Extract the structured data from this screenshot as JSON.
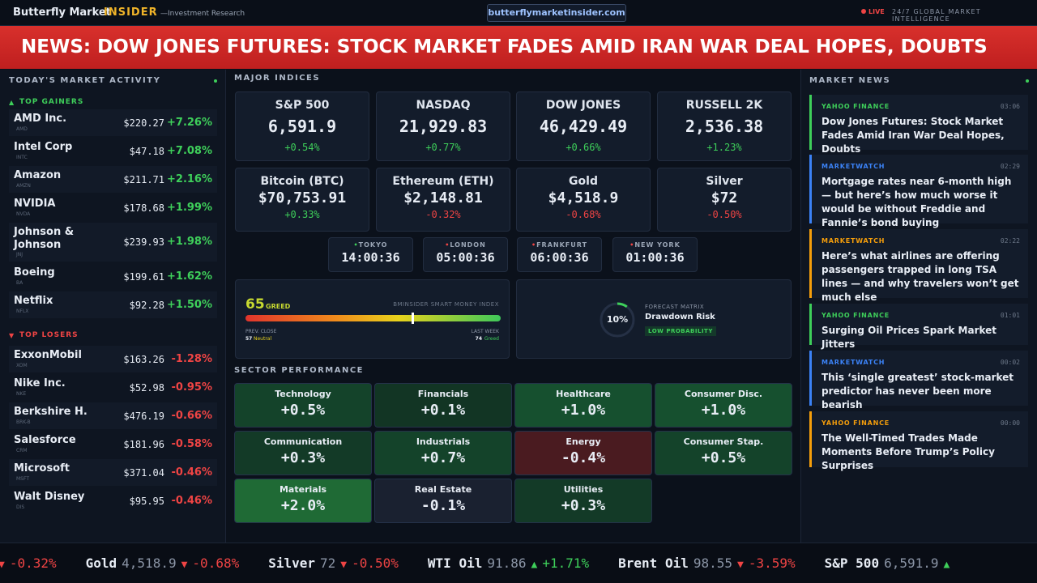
{
  "header": {
    "brand": "Butterfly Market",
    "brand_accent": "INSIDER",
    "tagline": "—Investment Research",
    "url": "butterflymarketinsider.com",
    "live": "LIVE",
    "live_tagline": "24/7 GLOBAL MARKET INTELLIGENCE"
  },
  "banner": "NEWS: DOW JONES FUTURES: STOCK MARKET FADES AMID IRAN WAR DEAL HOPES, DOUBTS",
  "market_activity": {
    "title": "TODAY'S MARKET ACTIVITY",
    "gainers_title": "TOP GAINERS",
    "losers_title": "TOP LOSERS",
    "gainers": [
      {
        "name": "AMD Inc.",
        "ticker": "AMD",
        "price": "$220.27",
        "change": "+7.26%"
      },
      {
        "name": "Intel Corp",
        "ticker": "INTC",
        "price": "$47.18",
        "change": "+7.08%"
      },
      {
        "name": "Amazon",
        "ticker": "AMZN",
        "price": "$211.71",
        "change": "+2.16%"
      },
      {
        "name": "NVIDIA",
        "ticker": "NVDA",
        "price": "$178.68",
        "change": "+1.99%"
      },
      {
        "name": "Johnson & Johnson",
        "ticker": "JNJ",
        "price": "$239.93",
        "change": "+1.98%"
      },
      {
        "name": "Boeing",
        "ticker": "BA",
        "price": "$199.61",
        "change": "+1.62%"
      },
      {
        "name": "Netflix",
        "ticker": "NFLX",
        "price": "$92.28",
        "change": "+1.50%"
      }
    ],
    "losers": [
      {
        "name": "ExxonMobil",
        "ticker": "XOM",
        "price": "$163.26",
        "change": "-1.28%"
      },
      {
        "name": "Nike Inc.",
        "ticker": "NKE",
        "price": "$52.98",
        "change": "-0.95%"
      },
      {
        "name": "Berkshire H.",
        "ticker": "BRK-B",
        "price": "$476.19",
        "change": "-0.66%"
      },
      {
        "name": "Salesforce",
        "ticker": "CRM",
        "price": "$181.96",
        "change": "-0.58%"
      },
      {
        "name": "Microsoft",
        "ticker": "MSFT",
        "price": "$371.04",
        "change": "-0.46%"
      },
      {
        "name": "Walt Disney",
        "ticker": "DIS",
        "price": "$95.95",
        "change": "-0.46%"
      }
    ]
  },
  "indices": {
    "title": "MAJOR INDICES",
    "items": [
      {
        "name": "S&P 500",
        "value": "6,591.9",
        "change": "+0.54%"
      },
      {
        "name": "NASDAQ",
        "value": "21,929.83",
        "change": "+0.77%"
      },
      {
        "name": "DOW JONES",
        "value": "46,429.49",
        "change": "+0.66%"
      },
      {
        "name": "RUSSELL 2K",
        "value": "2,536.38",
        "change": "+1.23%"
      },
      {
        "name": "Bitcoin (BTC)",
        "value": "$70,753.91",
        "change": "+0.33%"
      },
      {
        "name": "Ethereum (ETH)",
        "value": "$2,148.81",
        "change": "-0.32%"
      },
      {
        "name": "Gold",
        "value": "$4,518.9",
        "change": "-0.68%"
      },
      {
        "name": "Silver",
        "value": "$72",
        "change": "-0.50%"
      }
    ]
  },
  "clocks": [
    {
      "city": "TOKYO",
      "time": "14:00:36"
    },
    {
      "city": "LONDON",
      "time": "05:00:36"
    },
    {
      "city": "FRANKFURT",
      "time": "06:00:36"
    },
    {
      "city": "NEW YORK",
      "time": "01:00:36"
    }
  ],
  "sentiment": {
    "score": 65,
    "label": "GREED",
    "index_name": "BMINSIDER SMART MONEY INDEX",
    "prev_label": "PREV. CLOSE",
    "prev_value": "57",
    "prev_text": "Neutral",
    "week_label": "LAST WEEK",
    "week_value": "74",
    "week_text": "Greed"
  },
  "forecast": {
    "value": 10,
    "value_label": "10%",
    "title": "FORECAST MATRIX",
    "name": "Drawdown Risk",
    "tag": "LOW PROBABILITY"
  },
  "sectors": {
    "title": "SECTOR PERFORMANCE",
    "items": [
      {
        "name": "Technology",
        "change": "+0.5%",
        "color": "#14432a"
      },
      {
        "name": "Financials",
        "change": "+0.1%",
        "color": "#123524"
      },
      {
        "name": "Healthcare",
        "change": "+1.0%",
        "color": "#16502f"
      },
      {
        "name": "Consumer Disc.",
        "change": "+1.0%",
        "color": "#16502f"
      },
      {
        "name": "Communication",
        "change": "+0.3%",
        "color": "#133a27"
      },
      {
        "name": "Industrials",
        "change": "+0.7%",
        "color": "#14432a"
      },
      {
        "name": "Energy",
        "change": "-0.4%",
        "color": "#4a1b20"
      },
      {
        "name": "Consumer Stap.",
        "change": "+0.5%",
        "color": "#14432a"
      },
      {
        "name": "Materials",
        "change": "+2.0%",
        "color": "#1f6a35"
      },
      {
        "name": "Real Estate",
        "change": "-0.1%",
        "color": "#1a2130"
      },
      {
        "name": "Utilities",
        "change": "+0.3%",
        "color": "#133a27"
      }
    ]
  },
  "news": {
    "title": "MARKET NEWS",
    "items": [
      {
        "source": "YAHOO FINANCE",
        "time": "03:06",
        "headline": "Dow Jones Futures: Stock Market Fades Amid Iran War Deal Hopes, Doubts",
        "color": "#3ecf5a"
      },
      {
        "source": "MARKETWATCH",
        "time": "02:29",
        "headline": "Mortgage rates near 6-month high — but here’s how much worse it would be without Freddie and Fannie’s bond buying",
        "color": "#3b82f6"
      },
      {
        "source": "MARKETWATCH",
        "time": "02:22",
        "headline": "Here’s what airlines are offering passengers trapped in long TSA lines — and why travelers won’t get much else",
        "color": "#f59e0b"
      },
      {
        "source": "YAHOO FINANCE",
        "time": "01:01",
        "headline": "Surging Oil Prices Spark Market Jitters",
        "color": "#3ecf5a"
      },
      {
        "source": "MARKETWATCH",
        "time": "00:02",
        "headline": "This ‘single greatest’ stock-market predictor has never been more bearish",
        "color": "#3b82f6"
      },
      {
        "source": "YAHOO FINANCE",
        "time": "00:00",
        "headline": "The Well-Timed Trades Made Moments Before Trump’s Policy Surprises",
        "color": "#f59e0b"
      }
    ]
  },
  "ticker": [
    {
      "arrow": "▼",
      "change": "-0.32%"
    },
    {
      "name": "Gold",
      "price": "4,518.9",
      "arrow": "▼",
      "change": "-0.68%"
    },
    {
      "name": "Silver",
      "price": "72",
      "arrow": "▼",
      "change": "-0.50%"
    },
    {
      "name": "WTI Oil",
      "price": "91.86",
      "arrow": "▲",
      "change": "+1.71%"
    },
    {
      "name": "Brent Oil",
      "price": "98.55",
      "arrow": "▼",
      "change": "-3.59%"
    },
    {
      "name": "S&P 500",
      "price": "6,591.9",
      "arrow": "▲"
    }
  ]
}
